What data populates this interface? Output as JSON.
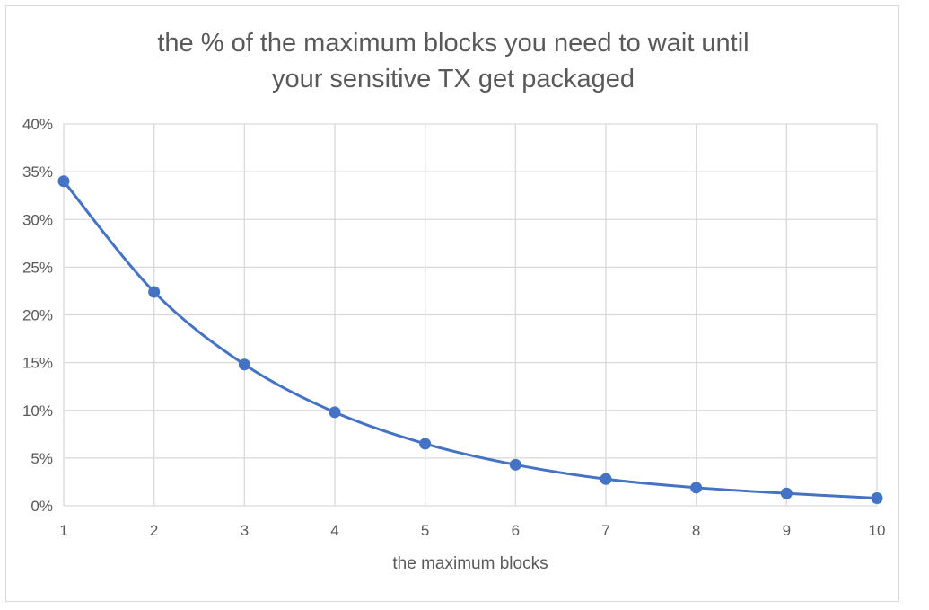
{
  "chart_data": {
    "type": "line",
    "title_lines": [
      "the % of the maximum blocks you need to wait until",
      "your sensitive TX get packaged"
    ],
    "xlabel": "the maximum blocks",
    "ylabel": "",
    "x": [
      1,
      2,
      3,
      4,
      5,
      6,
      7,
      8,
      9,
      10
    ],
    "x_tick_labels": [
      "1",
      "2",
      "3",
      "4",
      "5",
      "6",
      "7",
      "8",
      "9",
      "10"
    ],
    "y_tick_labels": [
      "0%",
      "5%",
      "10%",
      "15%",
      "20%",
      "25%",
      "30%",
      "35%",
      "40%"
    ],
    "y_ticks": [
      0,
      5,
      10,
      15,
      20,
      25,
      30,
      35,
      40
    ],
    "xlim": [
      1,
      10
    ],
    "ylim": [
      0,
      40
    ],
    "grid": true,
    "smooth": true,
    "series": [
      {
        "values": [
          34.0,
          22.4,
          14.8,
          9.8,
          6.5,
          4.3,
          2.8,
          1.9,
          1.3,
          0.8
        ],
        "color": "#4472c4"
      }
    ],
    "gridline_color": "#d9d9d9",
    "text_color": "#595959"
  }
}
